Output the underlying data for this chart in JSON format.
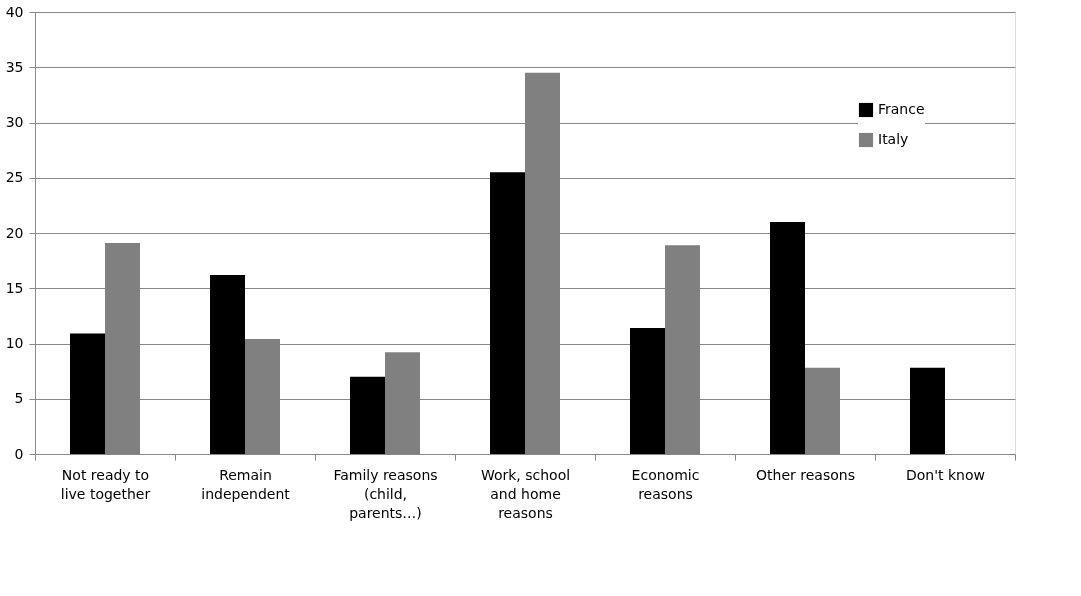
{
  "chart_data": {
    "type": "bar",
    "categories": [
      "Not ready to live together",
      "Remain independent",
      "Family reasons (child, parents…)",
      "Work, school and home reasons",
      "Economic reasons",
      "Other reasons",
      "Don't know"
    ],
    "series": [
      {
        "name": "France",
        "color": "#000000",
        "values": [
          10.9,
          16.2,
          7.0,
          25.5,
          11.4,
          21.0,
          7.8
        ]
      },
      {
        "name": "Italy",
        "color": "#808080",
        "values": [
          19.1,
          10.4,
          9.2,
          34.5,
          18.9,
          7.8,
          null
        ]
      }
    ],
    "ylim": [
      0,
      40
    ],
    "yticks": [
      0,
      5,
      10,
      15,
      20,
      25,
      30,
      35,
      40
    ],
    "grid": "y",
    "legend": "top right"
  }
}
